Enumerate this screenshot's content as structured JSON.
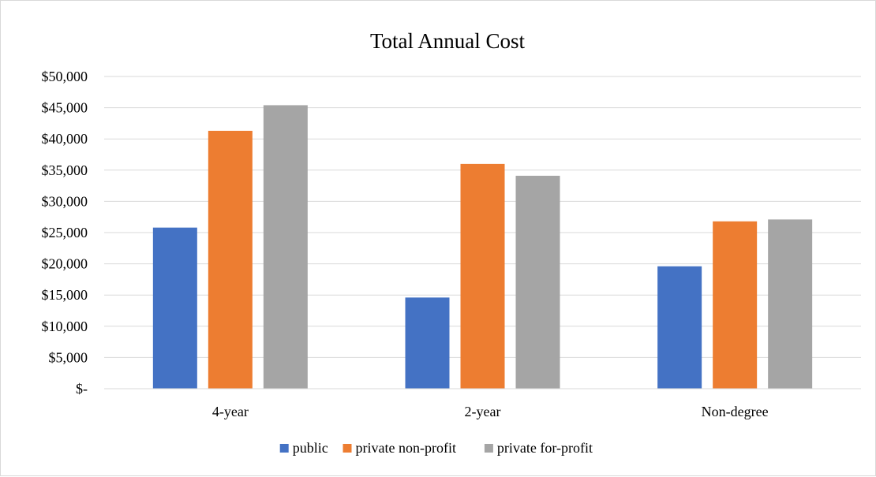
{
  "chart_data": {
    "type": "bar",
    "title": "Total Annual Cost",
    "categories": [
      "4-year",
      "2-year",
      "Non-degree"
    ],
    "series": [
      {
        "name": "public",
        "color": "#4472C4",
        "values": [
          25800,
          14600,
          19600
        ]
      },
      {
        "name": "private non-profit",
        "color": "#ED7D31",
        "values": [
          41300,
          36000,
          26800
        ]
      },
      {
        "name": "private for-profit",
        "color": "#A5A5A5",
        "values": [
          45400,
          34100,
          27100
        ]
      }
    ],
    "ylim": [
      0,
      50000
    ],
    "y_ticks": [
      {
        "value": 0,
        "label": "$-"
      },
      {
        "value": 5000,
        "label": "$5,000"
      },
      {
        "value": 10000,
        "label": "$10,000"
      },
      {
        "value": 15000,
        "label": "$15,000"
      },
      {
        "value": 20000,
        "label": "$20,000"
      },
      {
        "value": 25000,
        "label": "$25,000"
      },
      {
        "value": 30000,
        "label": "$30,000"
      },
      {
        "value": 35000,
        "label": "$35,000"
      },
      {
        "value": 40000,
        "label": "$40,000"
      },
      {
        "value": 45000,
        "label": "$45,000"
      },
      {
        "value": 50000,
        "label": "$50,000"
      }
    ],
    "grid": true,
    "gridline_color": "#D9D9D9",
    "legend_position": "bottom"
  }
}
